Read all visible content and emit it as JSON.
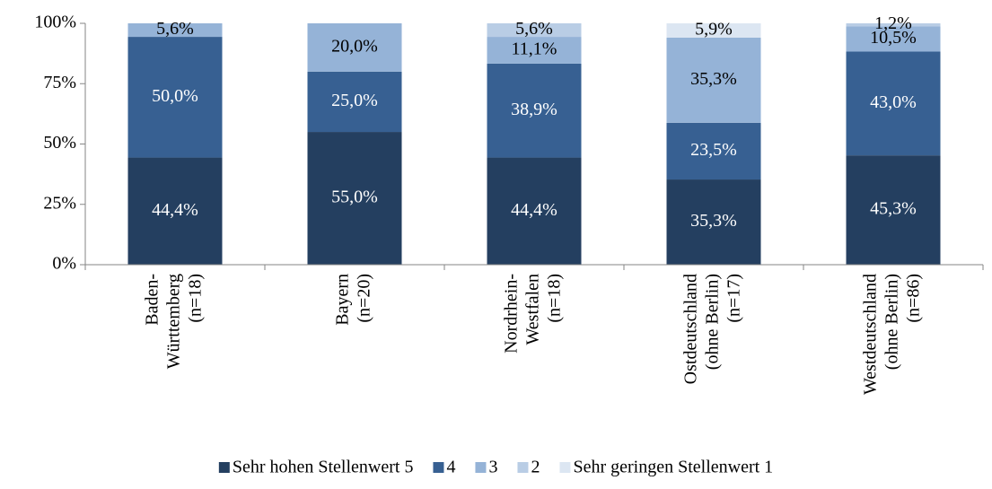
{
  "chart_data": {
    "type": "stacked_bar",
    "categories": [
      [
        "Baden-",
        "Württemberg",
        "(n=18)"
      ],
      [
        "Bayern",
        "(n=20)"
      ],
      [
        "Nordrhein-",
        "Westfalen",
        "(n=18)"
      ],
      [
        "Ostdeutschland",
        "(ohne Berlin)",
        "(n=17)"
      ],
      [
        "Westdeutschland",
        "(ohne Berlin)",
        "(n=86)"
      ]
    ],
    "series": [
      {
        "name": "Sehr hohen Stellenwert 5",
        "color": "#243f60",
        "values": [
          44.4,
          55.0,
          44.4,
          35.3,
          45.3
        ],
        "value_labels": [
          "44,4%",
          "55,0%",
          "44,4%",
          "35,3%",
          "45,3%"
        ]
      },
      {
        "name": "4",
        "color": "#376092",
        "values": [
          50.0,
          25.0,
          38.9,
          23.5,
          43.0
        ],
        "value_labels": [
          "50,0%",
          "25,0%",
          "38,9%",
          "23,5%",
          "43,0%"
        ]
      },
      {
        "name": "3",
        "color": "#95b3d7",
        "values": [
          5.6,
          20.0,
          11.1,
          35.3,
          10.5
        ],
        "value_labels": [
          "5,6%",
          "20,0%",
          "11,1%",
          "35,3%",
          "10,5%"
        ]
      },
      {
        "name": "2",
        "color": "#b9cde5",
        "values": [
          null,
          null,
          5.6,
          null,
          1.2
        ],
        "value_labels": [
          null,
          null,
          "5,6%",
          null,
          "1,2%"
        ]
      },
      {
        "name": "Sehr geringen Stellenwert 1",
        "color": "#dce6f2",
        "values": [
          null,
          null,
          null,
          5.9,
          null
        ],
        "value_labels": [
          null,
          null,
          null,
          "5,9%",
          null
        ]
      }
    ],
    "ylim": [
      0,
      100
    ],
    "yticks": [
      {
        "value": 0,
        "label": "0%"
      },
      {
        "value": 25,
        "label": "25%"
      },
      {
        "value": 50,
        "label": "50%"
      },
      {
        "value": 75,
        "label": "75%"
      },
      {
        "value": 100,
        "label": "100%"
      }
    ],
    "legend": "bottom"
  }
}
